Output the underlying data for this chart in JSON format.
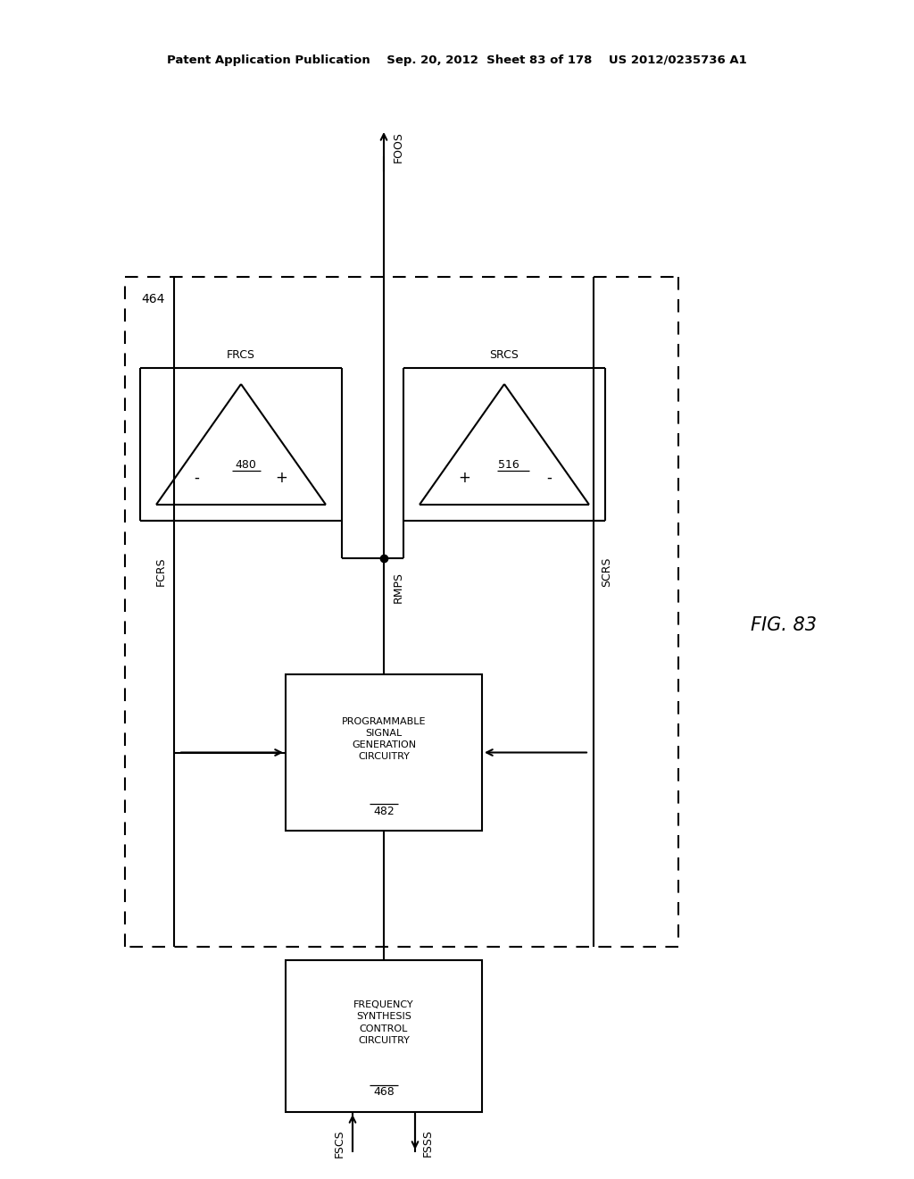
{
  "bg_color": "#ffffff",
  "header": "Patent Application Publication    Sep. 20, 2012  Sheet 83 of 178    US 2012/0235736 A1",
  "fig_label": "FIG. 83",
  "label_464": "464",
  "label_FRCS": "FRCS",
  "label_SRCS": "SRCS",
  "label_FCRS": "FCRS",
  "label_SCRS": "SCRS",
  "label_RMPS": "RMPS",
  "label_FOOS": "FOOS",
  "label_480": "480",
  "label_516": "516",
  "psgc_text": "PROGRAMMABLE\nSIGNAL\nGENERATION\nCIRCUITRY",
  "psgc_label": "482",
  "fsc_text": "FREQUENCY\nSYNTHESIS\nCONTROL\nCIRCUITRY",
  "fsc_label": "468",
  "label_FSCS": "FSCS",
  "label_FSSS": "FSSS"
}
